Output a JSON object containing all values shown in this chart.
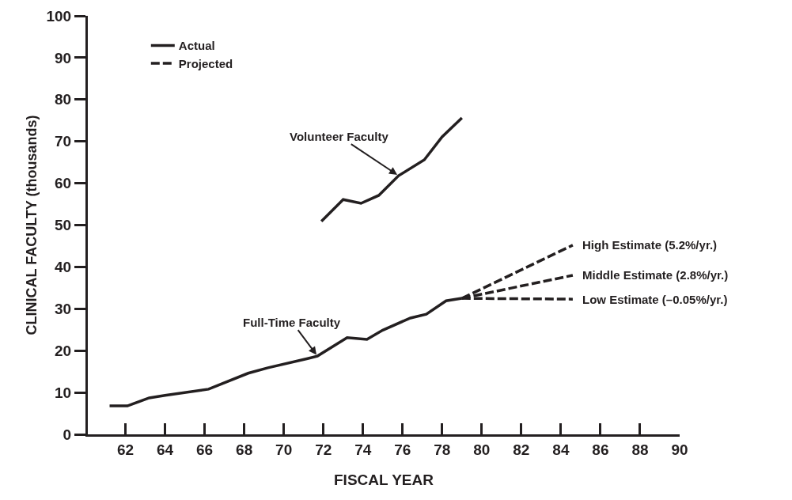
{
  "chart_data": {
    "type": "line",
    "xlabel": "FISCAL YEAR",
    "ylabel": "CLINICAL FACULTY (thousands)",
    "xlim": [
      60.1,
      90
    ],
    "xticks": [
      62,
      64,
      66,
      68,
      70,
      72,
      74,
      76,
      78,
      80,
      82,
      84,
      86,
      88,
      90
    ],
    "ylim": [
      0,
      100
    ],
    "yticks": [
      0,
      10,
      20,
      30,
      40,
      50,
      60,
      70,
      80,
      90,
      100
    ],
    "grid": false,
    "legend": "top left",
    "marker": "none",
    "series": [
      {
        "name": "Actual",
        "color": "#231f20",
        "line_style": "solid",
        "x": [
          61.2,
          62.1,
          63.2,
          64,
          66.2,
          68.2,
          69.2,
          71.2,
          71.7,
          73.2,
          74.2,
          75,
          76.4,
          77.2,
          78.2,
          79
        ],
        "values": [
          6.8,
          6.8,
          8.7,
          9.3,
          10.8,
          14.6,
          15.9,
          18.1,
          18.7,
          23.1,
          22.7,
          24.9,
          27.8,
          28.7,
          31.9,
          32.5
        ]
      },
      {
        "color": "#231f20",
        "line_style": "solid",
        "x": [
          71.9,
          73,
          73.9,
          74.8,
          75.8,
          77.1,
          78,
          79
        ],
        "values": [
          50.9,
          56.1,
          55.2,
          57.1,
          61.8,
          65.6,
          71.1,
          75.6
        ]
      },
      {
        "name": "Projected",
        "color": "#231f20",
        "line_style": "dashed",
        "x": [
          79,
          84.6
        ],
        "values": [
          32.5,
          45.2
        ]
      },
      {
        "color": "#231f20",
        "line_style": "dashed",
        "x": [
          79,
          84.6
        ],
        "values": [
          32.5,
          38.0
        ]
      },
      {
        "color": "#231f20",
        "line_style": "dashed",
        "x": [
          79,
          84.6
        ],
        "values": [
          32.5,
          32.3
        ]
      }
    ],
    "annotations": [
      {
        "text": "Volunteer Faculty",
        "x": 75.8,
        "y": 61.8
      },
      {
        "text": "Full-Time Faculty",
        "x": 71.7,
        "y": 18.7
      },
      {
        "text": "High Estimate (5.2%/yr.)",
        "x": 84.6,
        "y": 45.2
      },
      {
        "text": "Middle Estimate (2.8%/yr.)",
        "x": 84.6,
        "y": 38.0
      },
      {
        "text": "Low Estimate (–0.05%/yr.)",
        "x": 84.6,
        "y": 32.3
      }
    ]
  }
}
